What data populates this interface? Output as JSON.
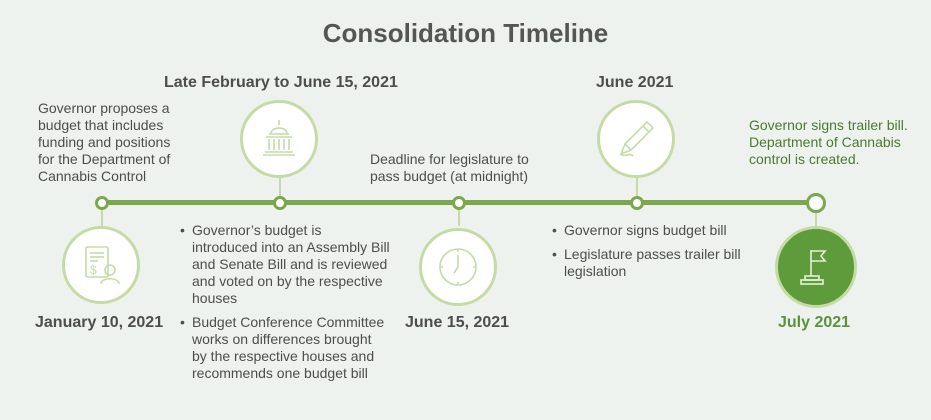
{
  "title": "Consolidation Timeline",
  "milestones": [
    {
      "date": "January 10, 2021",
      "description": "Governor proposes a budget that includes funding and positions for the Department of Cannabis Control",
      "icon": "budget-document-icon"
    },
    {
      "date": "Late February to June 15, 2021",
      "bullets": [
        "Governor’s budget is introduced into an Assembly Bill and Senate Bill and is reviewed and voted on by the respective houses",
        "Budget Conference Committee works on differences brought by the respective houses and recommends one budget bill"
      ],
      "icon": "capitol-building-icon"
    },
    {
      "date": "June 15, 2021",
      "description": "Deadline for legislature to pass budget (at midnight)",
      "icon": "clock-icon"
    },
    {
      "date": "June 2021",
      "bullets": [
        "Governor signs budget bill",
        "Legislature passes trailer bill legislation"
      ],
      "icon": "pen-icon"
    },
    {
      "date": "July 2021",
      "description": "Governor signs trailer bill. Department of Cannabis control is created.",
      "icon": "flag-icon"
    }
  ],
  "colors": {
    "background": "#edf2ee",
    "timeline": "#7aa84a",
    "accent": "#5e9b3b",
    "ring": "#c5dba5"
  }
}
